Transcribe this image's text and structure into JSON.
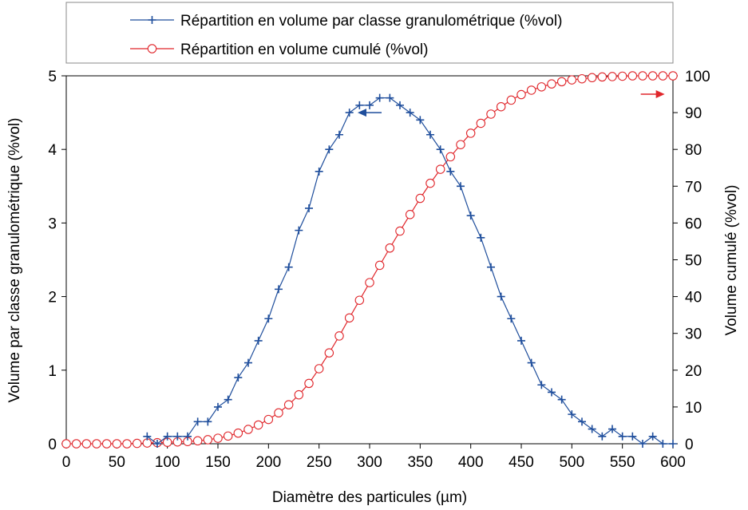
{
  "chart_data": {
    "type": "line",
    "xlabel": "Diamètre des particules (µm)",
    "ylabel_left": "Volume par classe granulométrique (%vol)",
    "ylabel_right": "Volume cumulé (%vol)",
    "xlim": [
      0,
      600
    ],
    "ylim_left": [
      0,
      5
    ],
    "ylim_right": [
      0,
      100
    ],
    "x_ticks": [
      "0",
      "50",
      "100",
      "150",
      "200",
      "250",
      "300",
      "350",
      "400",
      "450",
      "500",
      "550",
      "600"
    ],
    "y_left_ticks": [
      "0",
      "1",
      "2",
      "3",
      "4",
      "5"
    ],
    "y_right_ticks": [
      "0",
      "10",
      "20",
      "30",
      "40",
      "50",
      "60",
      "70",
      "80",
      "90",
      "100"
    ],
    "grid": false,
    "legend_position": "top",
    "series": [
      {
        "name": "Répartition en volume par classe granulométrique (%vol)",
        "axis": "left",
        "color": "#1f4e9c",
        "marker": "plus",
        "x": [
          80,
          90,
          100,
          110,
          120,
          130,
          140,
          150,
          160,
          170,
          180,
          190,
          200,
          210,
          220,
          230,
          240,
          250,
          260,
          270,
          280,
          290,
          300,
          310,
          320,
          330,
          340,
          350,
          360,
          370,
          380,
          390,
          400,
          410,
          420,
          430,
          440,
          450,
          460,
          470,
          480,
          490,
          500,
          510,
          520,
          530,
          540,
          550,
          560,
          570,
          580,
          590,
          600
        ],
        "y": [
          0.1,
          0.0,
          0.1,
          0.1,
          0.1,
          0.3,
          0.3,
          0.5,
          0.6,
          0.9,
          1.1,
          1.4,
          1.7,
          2.1,
          2.4,
          2.9,
          3.2,
          3.7,
          4.0,
          4.2,
          4.5,
          4.6,
          4.6,
          4.7,
          4.7,
          4.6,
          4.5,
          4.4,
          4.2,
          4.0,
          3.7,
          3.5,
          3.1,
          2.8,
          2.4,
          2.0,
          1.7,
          1.4,
          1.1,
          0.8,
          0.7,
          0.6,
          0.4,
          0.3,
          0.2,
          0.1,
          0.2,
          0.1,
          0.1,
          0.0,
          0.1,
          0.0,
          0.0
        ]
      },
      {
        "name": "Répartition en volume cumulé (%vol)",
        "axis": "right",
        "color": "#e0262b",
        "marker": "circle",
        "x": [
          0,
          10,
          20,
          30,
          40,
          50,
          60,
          70,
          80,
          90,
          100,
          110,
          120,
          130,
          140,
          150,
          160,
          170,
          180,
          190,
          200,
          210,
          220,
          230,
          240,
          250,
          260,
          270,
          280,
          290,
          300,
          310,
          320,
          330,
          340,
          350,
          360,
          370,
          380,
          390,
          400,
          410,
          420,
          430,
          440,
          450,
          460,
          470,
          480,
          490,
          500,
          510,
          520,
          530,
          540,
          550,
          560,
          570,
          580,
          590,
          600
        ],
        "y": [
          0,
          0,
          0,
          0,
          0,
          0,
          0,
          0.1,
          0.2,
          0.3,
          0.4,
          0.5,
          0.6,
          0.8,
          1.1,
          1.5,
          2.1,
          2.9,
          3.9,
          5.1,
          6.6,
          8.4,
          10.6,
          13.3,
          16.4,
          20.4,
          24.7,
          29.3,
          34.2,
          39.0,
          43.8,
          48.5,
          53.2,
          57.8,
          62.3,
          66.7,
          70.8,
          74.6,
          78.0,
          81.3,
          84.4,
          87.1,
          89.6,
          91.6,
          93.4,
          94.9,
          96.1,
          97.0,
          97.8,
          98.4,
          98.9,
          99.2,
          99.5,
          99.7,
          99.8,
          99.9,
          100,
          100,
          100,
          100,
          100
        ]
      }
    ],
    "annotations": [
      {
        "type": "arrow",
        "direction": "left",
        "color": "#1f4e9c",
        "at": [
          300,
          4.5
        ],
        "axis": "left"
      },
      {
        "type": "arrow",
        "direction": "right",
        "color": "#e0262b",
        "at": [
          580,
          95
        ],
        "axis": "right"
      }
    ]
  }
}
